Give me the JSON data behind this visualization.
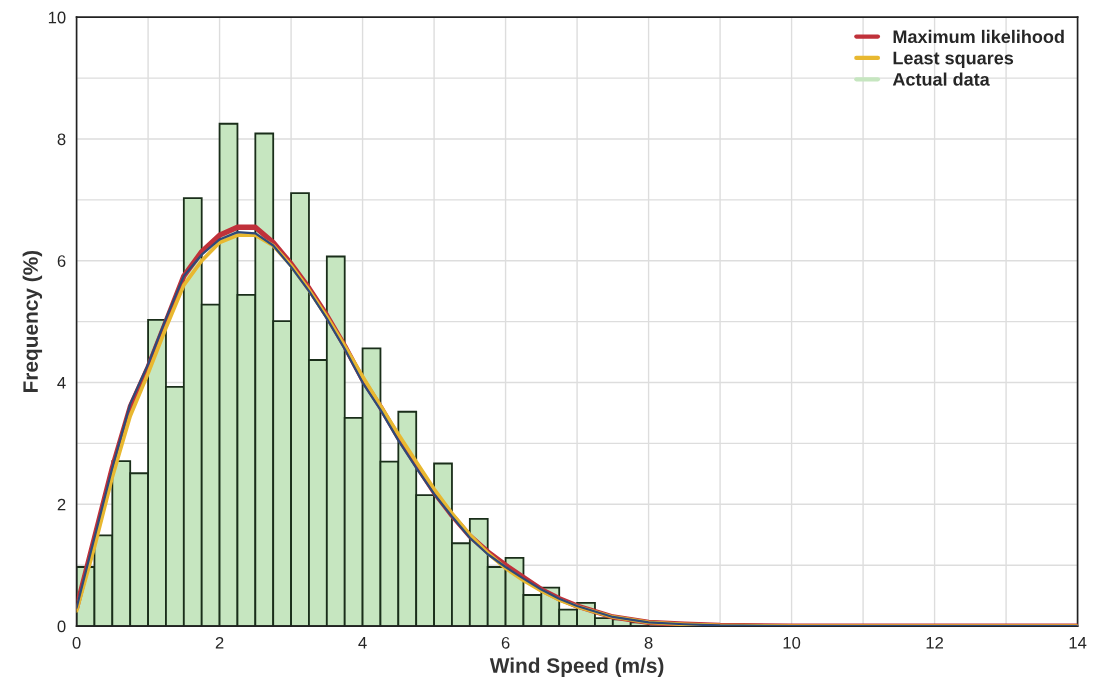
{
  "chart_data": {
    "type": "histogram",
    "xlabel": "Wind Speed (m/s)",
    "ylabel": "Frequency (%)",
    "xlim": [
      0,
      14
    ],
    "ylim": [
      0,
      10
    ],
    "xticks": [
      0,
      {
        "value": 1,
        "label": null
      },
      2,
      {
        "value": 3,
        "label": null
      },
      4,
      {
        "value": 5,
        "label": null
      },
      6,
      {
        "value": 7,
        "label": null
      },
      8,
      {
        "value": 9,
        "label": null
      },
      10,
      {
        "value": 11,
        "label": null
      },
      12,
      {
        "value": 13,
        "label": null
      },
      14
    ],
    "yticks": [
      0,
      {
        "value": 1,
        "label": null
      },
      2,
      {
        "value": 3,
        "label": null
      },
      4,
      {
        "value": 5,
        "label": null
      },
      6,
      {
        "value": 7,
        "label": null
      },
      8,
      {
        "value": 9,
        "label": null
      },
      10
    ],
    "grid": true,
    "legend": "top right",
    "series": [
      {
        "name": "Maximum likelihood",
        "type": "line",
        "color": "#c0313a",
        "x": [
          0,
          0.25,
          0.5,
          0.75,
          1,
          1.25,
          1.5,
          1.75,
          2,
          2.25,
          2.5,
          2.75,
          3,
          3.25,
          3.5,
          3.75,
          4,
          4.25,
          4.5,
          4.75,
          5,
          5.25,
          5.5,
          5.75,
          6,
          6.25,
          6.5,
          6.75,
          7,
          7.5,
          8,
          8.5,
          9,
          10,
          14
        ],
        "values": [
          0.3,
          1.45,
          2.6,
          3.6,
          4.25,
          5.0,
          5.75,
          6.15,
          6.42,
          6.55,
          6.55,
          6.3,
          5.95,
          5.55,
          5.1,
          4.6,
          4.05,
          3.6,
          3.1,
          2.65,
          2.2,
          1.82,
          1.48,
          1.22,
          1.0,
          0.8,
          0.6,
          0.45,
          0.33,
          0.15,
          0.06,
          0.03,
          0.01,
          0,
          0
        ]
      },
      {
        "name": "Least squares",
        "type": "line",
        "color": "#e8b830",
        "x": [
          0,
          0.25,
          0.5,
          0.75,
          1,
          1.25,
          1.5,
          1.75,
          2,
          2.25,
          2.5,
          2.75,
          3,
          3.25,
          3.5,
          3.75,
          4,
          4.25,
          4.5,
          4.75,
          5,
          5.25,
          5.5,
          5.75,
          6,
          6.25,
          6.5,
          6.75,
          7,
          7.5,
          8,
          8.5,
          9,
          10,
          14
        ],
        "values": [
          0.25,
          1.3,
          2.45,
          3.45,
          4.15,
          4.9,
          5.6,
          6.0,
          6.3,
          6.42,
          6.42,
          6.25,
          5.92,
          5.52,
          5.08,
          4.6,
          4.1,
          3.62,
          3.15,
          2.7,
          2.25,
          1.85,
          1.5,
          1.2,
          0.95,
          0.75,
          0.58,
          0.43,
          0.32,
          0.15,
          0.06,
          0.03,
          0.01,
          0,
          0
        ]
      },
      {
        "type": "line",
        "color": "#2e4a7a",
        "x": [
          0,
          0.25,
          0.5,
          0.75,
          1,
          1.25,
          1.5,
          1.75,
          2,
          2.25,
          2.5,
          2.75,
          3,
          3.25,
          3.5,
          3.75,
          4,
          4.25,
          4.5,
          4.75,
          5,
          5.25,
          5.5,
          5.75,
          6,
          6.25,
          6.5,
          6.75,
          7,
          7.5,
          8,
          8.5,
          9,
          10,
          14
        ],
        "values": [
          0.3,
          1.45,
          2.6,
          3.65,
          4.3,
          5.05,
          5.75,
          6.1,
          6.35,
          6.47,
          6.45,
          6.25,
          5.9,
          5.5,
          5.05,
          4.55,
          4.0,
          3.55,
          3.05,
          2.6,
          2.17,
          1.8,
          1.45,
          1.18,
          0.97,
          0.78,
          0.6,
          0.45,
          0.33,
          0.15,
          0.06,
          0.03,
          0.01,
          0,
          0
        ]
      },
      {
        "name": "Actual data",
        "color": "#c6e6c0",
        "bins": [
          0,
          0.25,
          0.5,
          0.75,
          1,
          1.25,
          1.5,
          1.75,
          2,
          2.25,
          2.5,
          2.75,
          3,
          3.25,
          3.5,
          3.75,
          4,
          4.25,
          4.5,
          4.75,
          5,
          5.25,
          5.5,
          5.75,
          6,
          6.25,
          6.5,
          6.75,
          7,
          7.25,
          7.5,
          7.75,
          8
        ],
        "values": [
          0.97,
          1.49,
          2.71,
          2.51,
          5.03,
          3.93,
          7.03,
          5.28,
          8.25,
          5.44,
          8.09,
          5.01,
          7.11,
          4.37,
          6.07,
          3.42,
          4.56,
          2.7,
          3.52,
          2.15,
          2.67,
          1.36,
          1.76,
          0.97,
          1.12,
          0.51,
          0.63,
          0.27,
          0.38,
          0.13,
          0.11,
          0.06
        ]
      }
    ]
  }
}
